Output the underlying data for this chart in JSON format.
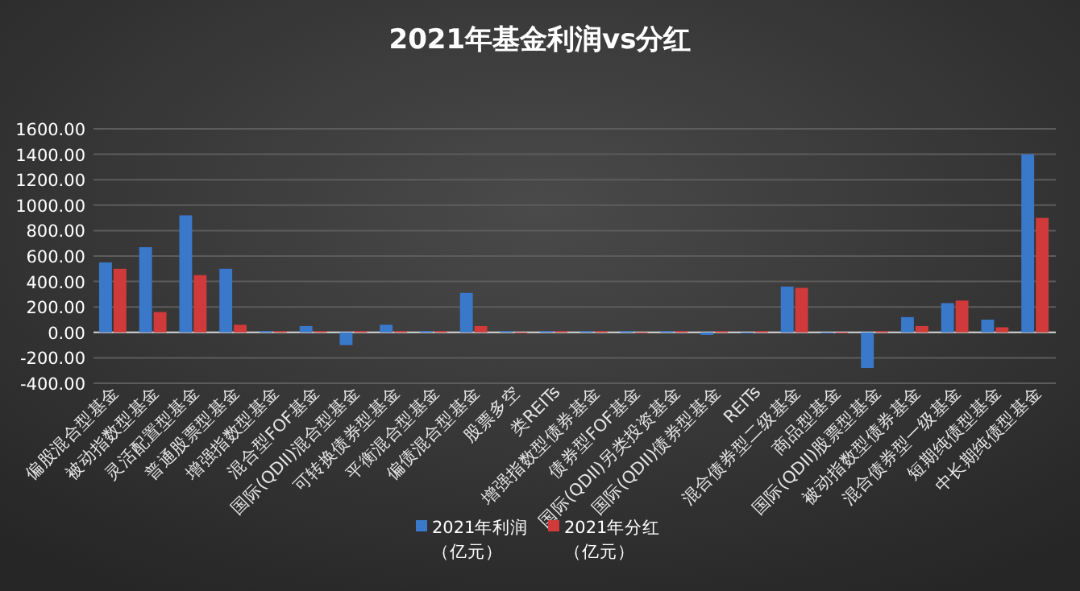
{
  "chart_data": {
    "type": "bar",
    "title": "2021年基金利润vs分红",
    "categories": [
      "偏股混合型基金",
      "被动指数型基金",
      "灵活配置型基金",
      "普通股票型基金",
      "增强指数型基金",
      "混合型FOF基金",
      "国际(QDII)混合型基金",
      "可转换债券型基金",
      "平衡混合型基金",
      "偏债混合型基金",
      "股票多空",
      "类REITs",
      "增强指数型债券基金",
      "债券型FOF基金",
      "国际(QDII)另类投资基金",
      "国际(QDII)债券型基金",
      "REITs",
      "混合债券型二级基金",
      "商品型基金",
      "国际(QDII)股票型基金",
      "被动指数型债券基金",
      "混合债券型一级基金",
      "短期纯债型基金",
      "中长期纯债型基金"
    ],
    "series": [
      {
        "name": "2021年利润（亿元）",
        "color": "#3a78c9",
        "values": [
          550,
          670,
          920,
          500,
          10,
          50,
          -100,
          60,
          10,
          310,
          10,
          10,
          10,
          10,
          10,
          -20,
          0,
          360,
          0,
          -280,
          120,
          230,
          100,
          1400
        ]
      },
      {
        "name": "2021年分红（亿元）",
        "color": "#d03a3a",
        "values": [
          500,
          160,
          450,
          60,
          10,
          10,
          10,
          10,
          10,
          50,
          0,
          10,
          10,
          0,
          10,
          10,
          10,
          350,
          0,
          10,
          50,
          250,
          40,
          900
        ]
      }
    ],
    "ylim": [
      -400,
      1600
    ],
    "yticks": [
      {
        "value": -400,
        "label": "-400.00"
      },
      {
        "value": -200,
        "label": "-200.00"
      },
      {
        "value": 0,
        "label": "0.00"
      },
      {
        "value": 200,
        "label": "200.00"
      },
      {
        "value": 400,
        "label": "400.00"
      },
      {
        "value": 600,
        "label": "600.00"
      },
      {
        "value": 800,
        "label": "800.00"
      },
      {
        "value": 1000,
        "label": "1000.00"
      },
      {
        "value": 1200,
        "label": "1200.00"
      },
      {
        "value": 1400,
        "label": "1400.00"
      },
      {
        "value": 1600,
        "label": "1600.00"
      }
    ],
    "grid": "y",
    "legend": "bottom"
  }
}
